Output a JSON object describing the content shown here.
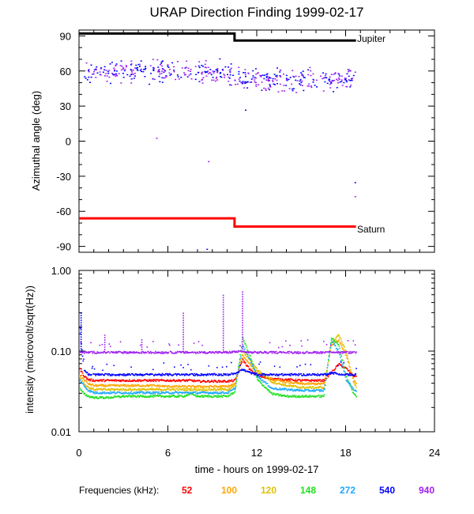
{
  "chart_data": [
    {
      "type": "scatter",
      "title": "URAP Direction Finding  1999-02-17",
      "xlabel": "",
      "ylabel": "Azimuthal angle (deg)",
      "xlim": [
        0,
        24
      ],
      "ylim": [
        -95,
        95
      ],
      "yticks": [
        90,
        60,
        30,
        0,
        -30,
        -60,
        -90
      ],
      "yticklabels": [
        "90",
        "60",
        "30",
        "0",
        "-30",
        "-60",
        "-90"
      ],
      "reference_lines": [
        {
          "name": "Jupiter",
          "color": "#000000",
          "x": [
            0,
            10.5,
            10.5,
            18.7
          ],
          "y": [
            92,
            92,
            86,
            86
          ]
        },
        {
          "name": "Saturn",
          "color": "#ff0000",
          "x": [
            0,
            10.5,
            10.5,
            18.7
          ],
          "y": [
            -66,
            -66,
            -73,
            -73
          ]
        }
      ],
      "scatter_series": [
        {
          "name": "540 kHz",
          "color": "#0000ff",
          "x_range": [
            0.3,
            18.7
          ],
          "y_center_before": 60,
          "y_center_after": 53,
          "y_spread": 9
        },
        {
          "name": "940 kHz",
          "color": "#a020f0",
          "x_range": [
            0.3,
            18.7
          ],
          "y_center_before": 60,
          "y_center_after": 53,
          "y_spread": 9
        }
      ],
      "outliers": [
        {
          "x": 5.2,
          "y": 3,
          "color": "#a020f0"
        },
        {
          "x": 8.7,
          "y": -17,
          "color": "#a020f0"
        },
        {
          "x": 11.2,
          "y": 27,
          "color": "#0000ff"
        },
        {
          "x": 18.6,
          "y": -35,
          "color": "#0000ff"
        },
        {
          "x": 18.6,
          "y": -47,
          "color": "#a020f0"
        },
        {
          "x": 8.6,
          "y": -92,
          "color": "#0000ff"
        }
      ]
    },
    {
      "type": "line",
      "title": "",
      "xlabel": "time - hours on 1999-02-17",
      "ylabel": "intensity (microvolt/sqrt(Hz))",
      "xlim": [
        0,
        24
      ],
      "ylim": [
        0.01,
        1.0
      ],
      "yscale": "log",
      "xticks": [
        0,
        6,
        12,
        18,
        24
      ],
      "xticklabels": [
        "0",
        "6",
        "12",
        "18",
        "24"
      ],
      "yticks": [
        1.0,
        0.1,
        0.01
      ],
      "yticklabels": [
        "1.00",
        "0.10",
        "0.01"
      ],
      "x": [
        0,
        0.3,
        0.6,
        1.0,
        1.5,
        2.0,
        3.0,
        4.0,
        5.0,
        6.0,
        7.0,
        7.5,
        8.0,
        9.0,
        10.0,
        10.5,
        11.0,
        11.5,
        12.0,
        13.0,
        14.0,
        15.0,
        16.0,
        16.5,
        17.0,
        17.5,
        18.0,
        18.5,
        18.7
      ],
      "series": [
        {
          "name": "52",
          "color": "#ff0000",
          "values": [
            0.062,
            0.05,
            0.045,
            0.044,
            0.044,
            0.044,
            0.044,
            0.044,
            0.044,
            0.044,
            0.044,
            0.044,
            0.043,
            0.043,
            0.043,
            0.044,
            0.08,
            0.06,
            0.05,
            0.046,
            0.045,
            0.044,
            0.044,
            0.044,
            0.055,
            0.07,
            0.062,
            0.05,
            0.05
          ]
        },
        {
          "name": "100",
          "color": "#ffa500",
          "values": [
            0.052,
            0.045,
            0.04,
            0.038,
            0.038,
            0.038,
            0.038,
            0.038,
            0.038,
            0.037,
            0.037,
            0.037,
            0.037,
            0.037,
            0.037,
            0.04,
            0.09,
            0.07,
            0.055,
            0.045,
            0.042,
            0.04,
            0.04,
            0.04,
            0.12,
            0.14,
            0.09,
            0.045,
            0.04
          ]
        },
        {
          "name": "120",
          "color": "#e0c000",
          "values": [
            0.05,
            0.04,
            0.036,
            0.034,
            0.034,
            0.034,
            0.034,
            0.034,
            0.034,
            0.034,
            0.034,
            0.034,
            0.034,
            0.034,
            0.034,
            0.038,
            0.1,
            0.08,
            0.06,
            0.042,
            0.038,
            0.036,
            0.036,
            0.036,
            0.13,
            0.16,
            0.1,
            0.042,
            0.036
          ]
        },
        {
          "name": "148",
          "color": "#20e020",
          "values": [
            0.035,
            0.03,
            0.028,
            0.027,
            0.027,
            0.027,
            0.028,
            0.028,
            0.028,
            0.028,
            0.028,
            0.03,
            0.028,
            0.028,
            0.028,
            0.032,
            0.15,
            0.09,
            0.045,
            0.03,
            0.028,
            0.028,
            0.028,
            0.028,
            0.15,
            0.12,
            0.05,
            0.03,
            0.028
          ]
        },
        {
          "name": "272",
          "color": "#1ea8ff",
          "values": [
            0.045,
            0.038,
            0.033,
            0.031,
            0.031,
            0.031,
            0.031,
            0.031,
            0.031,
            0.031,
            0.031,
            0.031,
            0.031,
            0.031,
            0.031,
            0.035,
            0.12,
            0.08,
            0.05,
            0.035,
            0.034,
            0.033,
            0.033,
            0.033,
            0.14,
            0.1,
            0.045,
            0.034,
            0.033
          ]
        },
        {
          "name": "540",
          "color": "#0000ff",
          "values": [
            0.2,
            0.06,
            0.052,
            0.052,
            0.052,
            0.052,
            0.052,
            0.052,
            0.052,
            0.052,
            0.052,
            0.052,
            0.052,
            0.052,
            0.052,
            0.054,
            0.06,
            0.055,
            0.052,
            0.052,
            0.052,
            0.052,
            0.052,
            0.052,
            0.055,
            0.053,
            0.052,
            0.052,
            0.052
          ]
        },
        {
          "name": "940",
          "color": "#a020f0",
          "values": [
            0.1,
            0.098,
            0.098,
            0.098,
            0.098,
            0.098,
            0.098,
            0.098,
            0.098,
            0.098,
            0.098,
            0.098,
            0.098,
            0.098,
            0.098,
            0.1,
            0.1,
            0.098,
            0.098,
            0.098,
            0.098,
            0.098,
            0.098,
            0.098,
            0.1,
            0.098,
            0.098,
            0.098,
            0.098
          ]
        }
      ],
      "spikes": [
        {
          "x": 0.1,
          "y": 0.3,
          "color": "#0000ff"
        },
        {
          "x": 1.7,
          "y": 0.16,
          "color": "#a020f0"
        },
        {
          "x": 4.2,
          "y": 0.14,
          "color": "#a020f0"
        },
        {
          "x": 7.0,
          "y": 0.3,
          "color": "#a020f0"
        },
        {
          "x": 9.7,
          "y": 0.5,
          "color": "#a020f0"
        },
        {
          "x": 11.0,
          "y": 0.55,
          "color": "#a020f0"
        }
      ]
    }
  ],
  "legend": {
    "label": "Frequencies (kHz):",
    "items": [
      {
        "label": "52",
        "color": "#ff0000"
      },
      {
        "label": "100",
        "color": "#ffa500"
      },
      {
        "label": "120",
        "color": "#e0c000"
      },
      {
        "label": "148",
        "color": "#20e020"
      },
      {
        "label": "272",
        "color": "#1ea8ff"
      },
      {
        "label": "540",
        "color": "#0000ff"
      },
      {
        "label": "940",
        "color": "#a020f0"
      }
    ]
  }
}
